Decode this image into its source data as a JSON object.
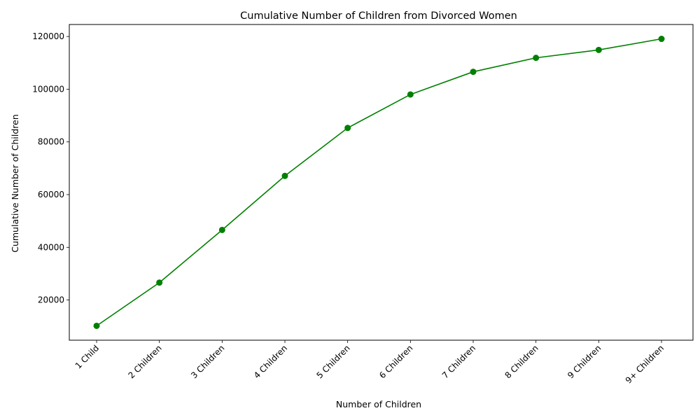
{
  "chart_data": {
    "type": "line",
    "title": "Cumulative Number of Children from Divorced Women",
    "xlabel": "Number of Children",
    "ylabel": "Cumulative Number of Children",
    "categories": [
      "1 Child",
      "2 Children",
      "3 Children",
      "4 Children",
      "5 Children",
      "6 Children",
      "7 Children",
      "8 Children",
      "9 Children",
      "9+ Children"
    ],
    "series": [
      {
        "values": [
          10200,
          26600,
          46600,
          67100,
          85300,
          98000,
          106600,
          111900,
          114900,
          119100
        ],
        "color": "#008000",
        "marker": "circle"
      }
    ],
    "yticks": [
      20000,
      40000,
      60000,
      80000,
      100000,
      120000
    ],
    "ylim": [
      4750,
      124550
    ],
    "grid": false,
    "legend": "none"
  }
}
